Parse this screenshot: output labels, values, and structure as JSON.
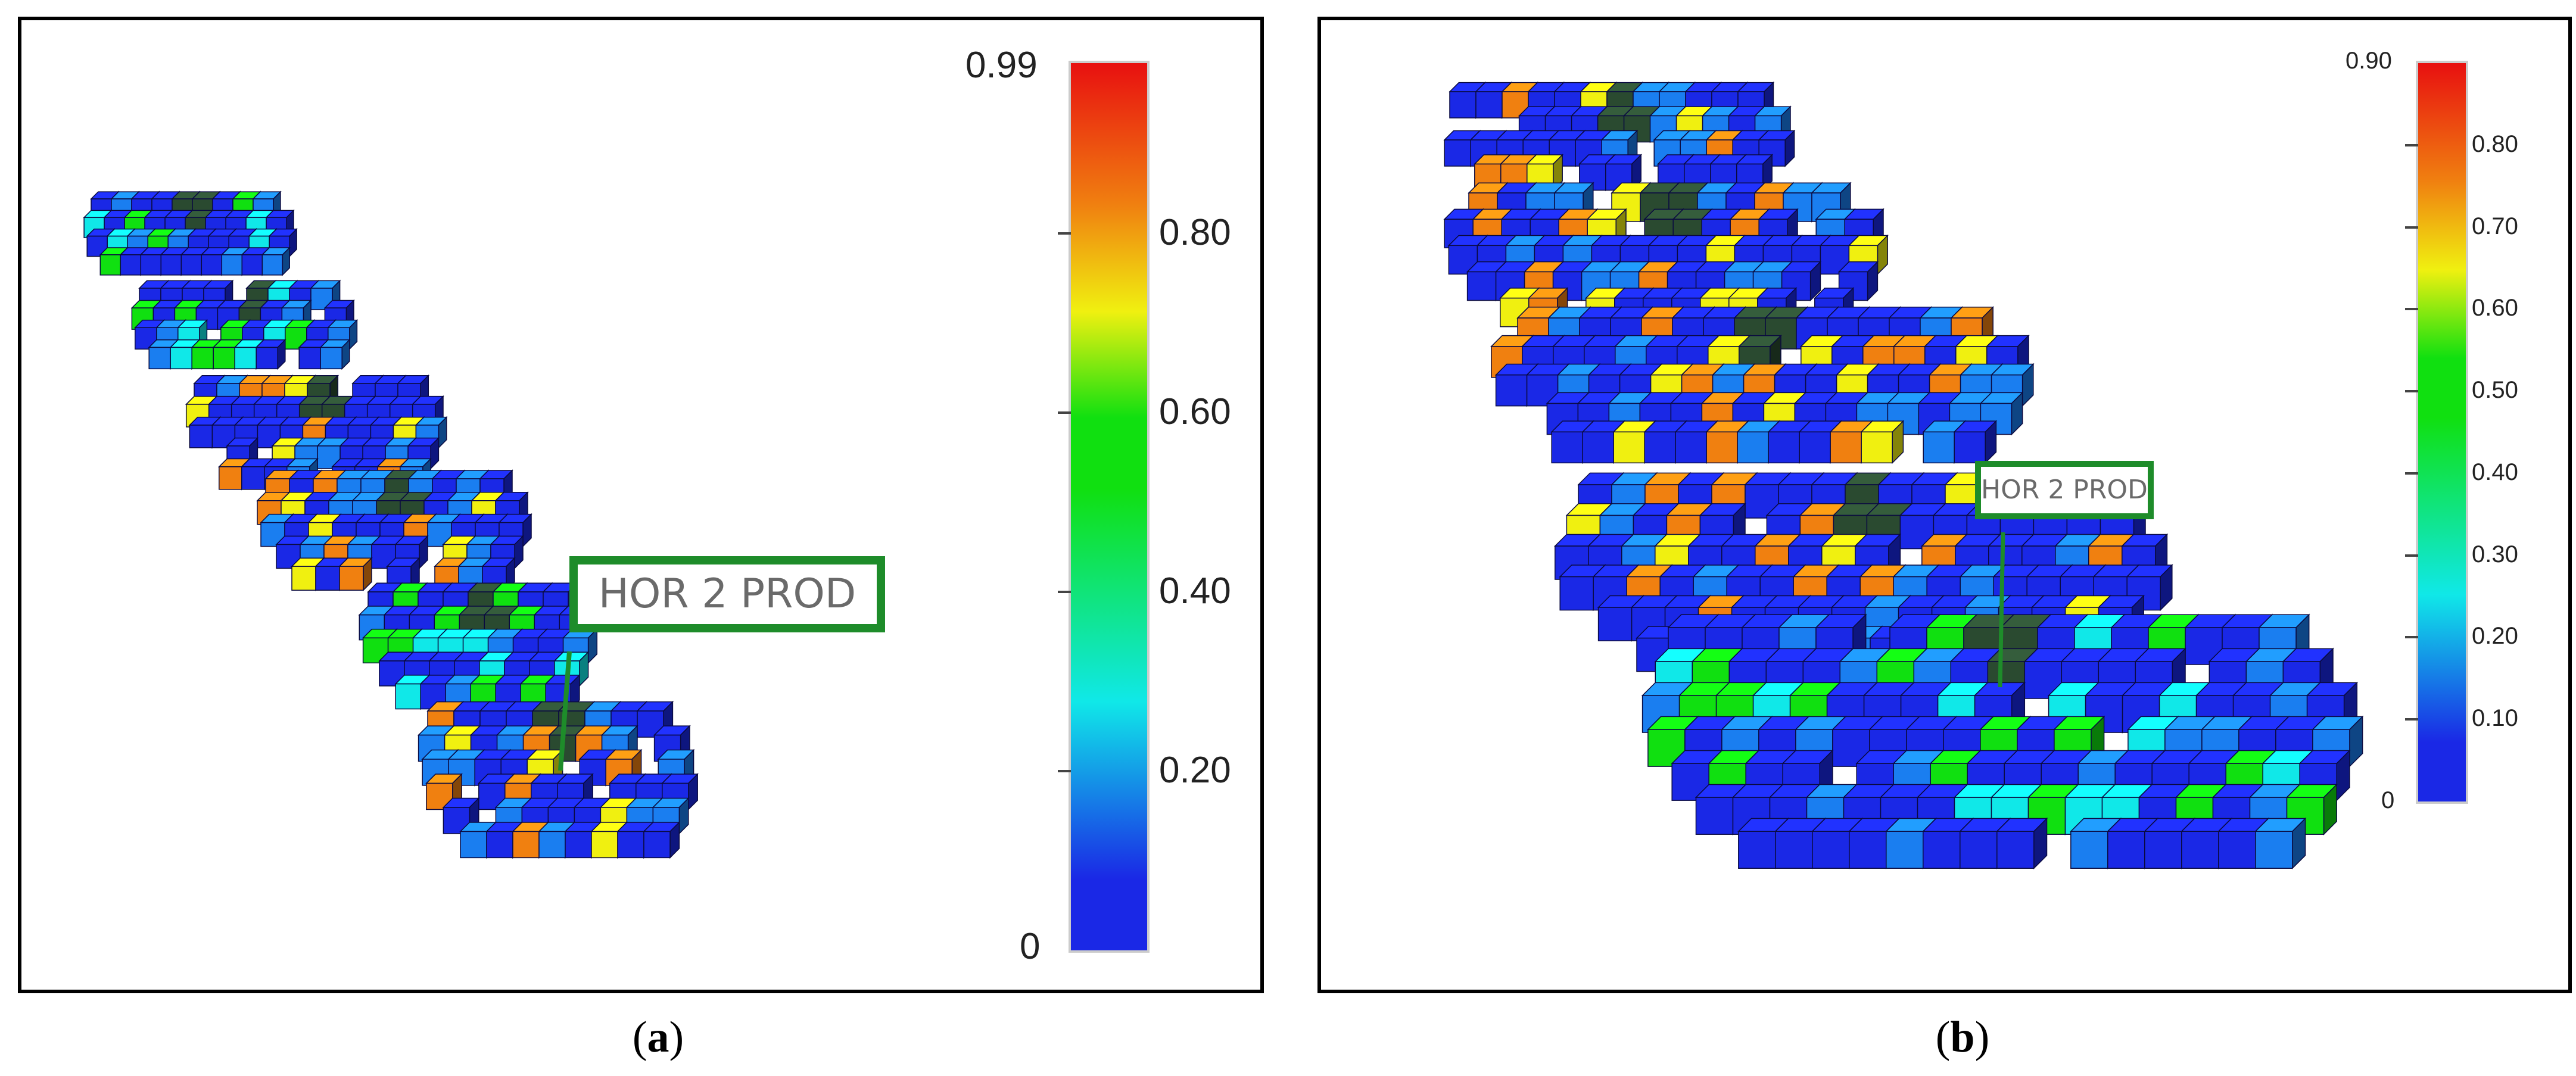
{
  "panels": [
    {
      "id": "a",
      "caption_open": "(",
      "caption_letter": "a",
      "caption_close": ")",
      "well_label": "HOR 2 PROD",
      "colorbar": {
        "max_label": "0.99",
        "min_label": "0",
        "ticks": [
          {
            "value": 0.8,
            "label": "0.80"
          },
          {
            "value": 0.6,
            "label": "0.60"
          },
          {
            "value": 0.4,
            "label": "0.40"
          },
          {
            "value": 0.2,
            "label": "0.20"
          }
        ],
        "range": [
          0,
          0.99
        ]
      }
    },
    {
      "id": "b",
      "caption_open": "(",
      "caption_letter": "b",
      "caption_close": ")",
      "well_label": "HOR 2 PROD",
      "colorbar": {
        "max_label": "0.90",
        "min_label": "0",
        "ticks": [
          {
            "value": 0.8,
            "label": "0.80"
          },
          {
            "value": 0.7,
            "label": "0.70"
          },
          {
            "value": 0.6,
            "label": "0.60"
          },
          {
            "value": 0.5,
            "label": "0.50"
          },
          {
            "value": 0.4,
            "label": "0.40"
          },
          {
            "value": 0.3,
            "label": "0.30"
          },
          {
            "value": 0.2,
            "label": "0.20"
          },
          {
            "value": 0.1,
            "label": "0.10"
          }
        ],
        "range": [
          0,
          0.9
        ]
      }
    }
  ],
  "colors": {
    "low": "#1a28e6",
    "cyan": "#10e8e8",
    "green": "#10e010",
    "yellow": "#f0f010",
    "orange": "#f08010",
    "high": "#e81010",
    "well_frame": "#1e8c2a"
  }
}
